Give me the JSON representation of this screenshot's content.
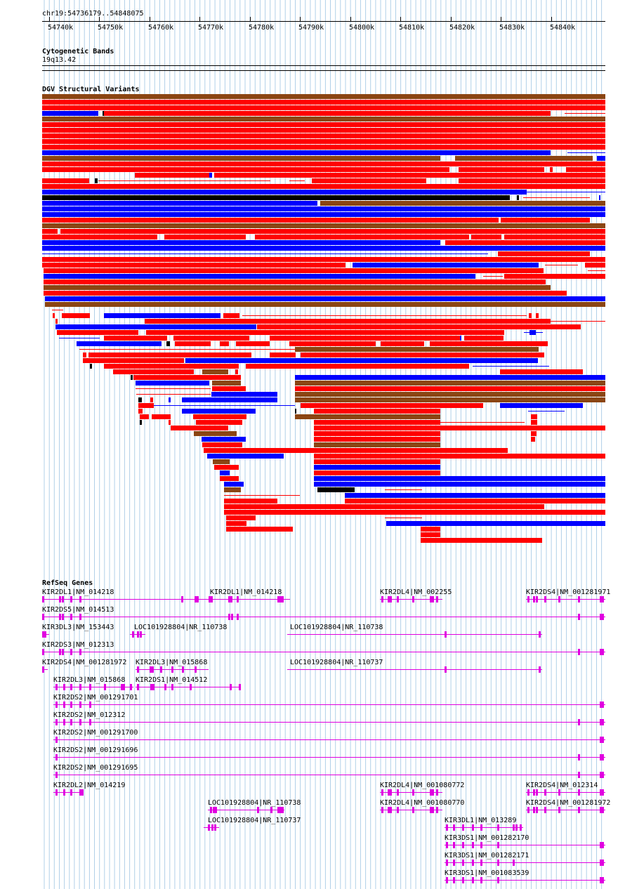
{
  "ruler": {
    "region_label": "chr19:54736179..54848075",
    "ticks": [
      "54740k",
      "54750k",
      "54760k",
      "54770k",
      "54780k",
      "54790k",
      "54800k",
      "54810k",
      "54820k",
      "54830k",
      "54840k"
    ]
  },
  "tracks": {
    "cytoband": {
      "title": "Cytogenetic Bands",
      "band": "19q13.42"
    },
    "dgv": {
      "title": "DGV Structural Variants"
    },
    "refseq": {
      "title": "RefSeq Genes"
    }
  },
  "colors": {
    "gain": "#ff0000",
    "loss": "#0000ff",
    "gain_loss": "#8b4513",
    "complex": "#000000",
    "gene": "#e000e0",
    "grid": "#b0d0e8"
  },
  "genes": [
    "KIR2DL1|NM_014218",
    "KIR2DL1|NM_014218",
    "KIR2DL4|NM_002255",
    "KIR2DS4|NM_001281971",
    "KIR2DS5|NM_014513",
    "KIR3DL3|NM_153443",
    "LOC101928804|NR_110738",
    "LOC101928804|NR_110738",
    "KIR2DS3|NM_012313",
    "KIR2DS4|NM_001281972",
    "KIR2DL3|NM_015868",
    "LOC101928804|NR_110737",
    "KIR2DL3|NM_015868",
    "KIR2DS1|NM_014512",
    "KIR2DS2|NM_001291701",
    "KIR2DS2|NM_012312",
    "KIR2DS2|NM_001291700",
    "KIR2DS2|NM_001291696",
    "KIR2DS2|NM_001291695",
    "KIR2DL2|NM_014219",
    "KIR2DL4|NM_001080772",
    "KIR2DS4|NM_012314",
    "LOC101928804|NR_110738",
    "KIR2DL4|NM_001080770",
    "KIR2DS4|NM_001281972",
    "LOC101928804|NR_110737",
    "KIR3DL1|NM_013289",
    "KIR3DS1|NM_001282170",
    "KIR3DS1|NM_001282171",
    "KIR3DS1|NM_001083539"
  ]
}
